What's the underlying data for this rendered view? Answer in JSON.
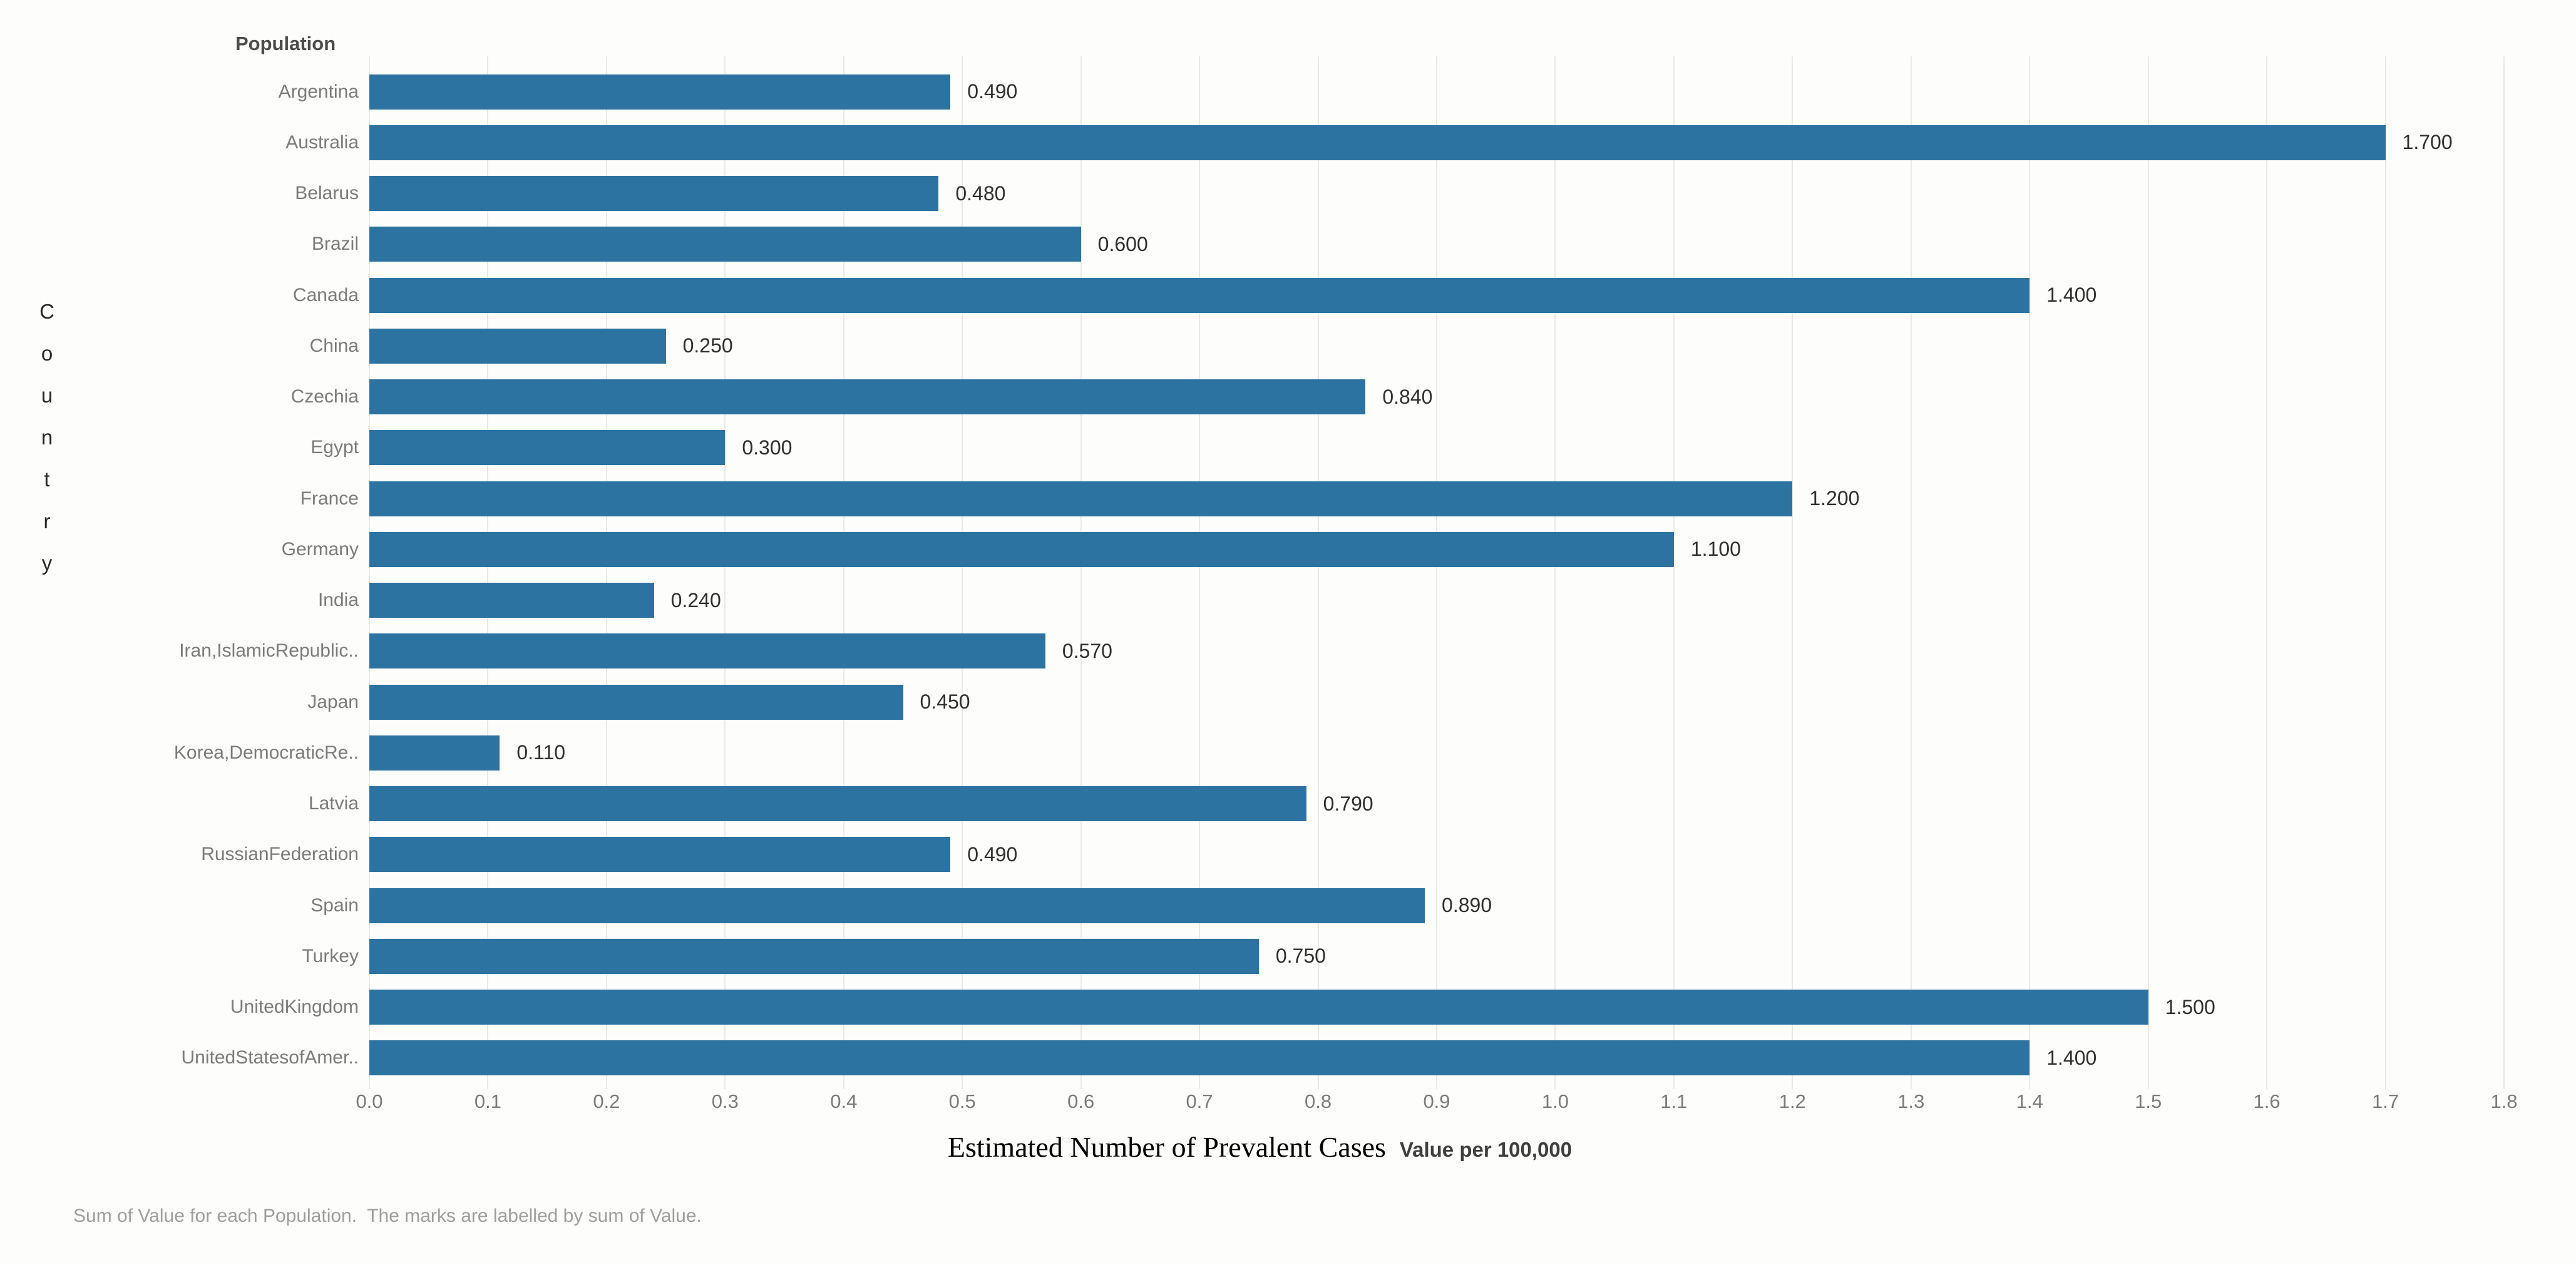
{
  "chart_data": {
    "type": "bar",
    "orientation": "horizontal",
    "title": "Estimated Number of Prevalent Cases",
    "axis_subtitle": "Value per 100,000",
    "column_header": "Population",
    "row_axis_label": "Country",
    "categories": [
      "Argentina",
      "Australia",
      "Belarus",
      "Brazil",
      "Canada",
      "China",
      "Czechia",
      "Egypt",
      "France",
      "Germany",
      "India",
      "Iran,IslamicRepublic..",
      "Japan",
      "Korea,DemocraticRe..",
      "Latvia",
      "RussianFederation",
      "Spain",
      "Turkey",
      "UnitedKingdom",
      "UnitedStatesofAmer.."
    ],
    "values": [
      0.49,
      1.7,
      0.48,
      0.6,
      1.4,
      0.25,
      0.84,
      0.3,
      1.2,
      1.1,
      0.24,
      0.57,
      0.45,
      0.11,
      0.79,
      0.49,
      0.89,
      0.75,
      1.5,
      1.4
    ],
    "value_labels": [
      "0.490",
      "1.700",
      "0.480",
      "0.600",
      "1.400",
      "0.250",
      "0.840",
      "0.300",
      "1.200",
      "1.100",
      "0.240",
      "0.570",
      "0.450",
      "0.110",
      "0.790",
      "0.490",
      "0.890",
      "0.750",
      "1.500",
      "1.400"
    ],
    "x_ticks": [
      "0.0",
      "0.1",
      "0.2",
      "0.3",
      "0.4",
      "0.5",
      "0.6",
      "0.7",
      "0.8",
      "0.9",
      "1.0",
      "1.1",
      "1.2",
      "1.3",
      "1.4",
      "1.5",
      "1.6",
      "1.7",
      "1.8"
    ],
    "xlim": [
      0,
      1.8
    ],
    "grid": true,
    "legend": "none",
    "bar_color": "#2d73a1",
    "caption": "Sum of Value for each Population.  The marks are labelled by sum of Value."
  }
}
